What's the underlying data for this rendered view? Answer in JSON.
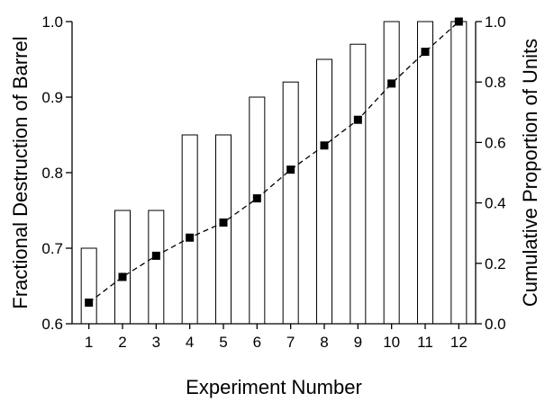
{
  "chart_data": {
    "type": "bar",
    "xlabel": "Experiment Number",
    "ylabel": "Fractional Destruction of Barrel",
    "y2label": "Cumulative Proportion of Units",
    "categories": [
      "1",
      "2",
      "3",
      "4",
      "5",
      "6",
      "7",
      "8",
      "9",
      "10",
      "11",
      "12"
    ],
    "ylim": [
      0.6,
      1.0
    ],
    "y2lim": [
      0.0,
      1.0
    ],
    "yticks": [
      "0.6",
      "0.7",
      "0.8",
      "0.9",
      "1.0"
    ],
    "y2ticks": [
      "0.0",
      "0.2",
      "0.4",
      "0.6",
      "0.8",
      "1.0"
    ],
    "grid": false,
    "legend": "none",
    "series": [
      {
        "type": "bar",
        "axis": "left",
        "values": [
          0.7,
          0.75,
          0.75,
          0.85,
          0.85,
          0.9,
          0.92,
          0.95,
          0.97,
          1.0,
          1.0,
          1.0
        ]
      },
      {
        "type": "line",
        "axis": "right",
        "style": "dashed",
        "marker": "square",
        "values": [
          0.07,
          0.155,
          0.225,
          0.285,
          0.335,
          0.415,
          0.51,
          0.59,
          0.675,
          0.795,
          0.9,
          1.0
        ]
      }
    ]
  }
}
